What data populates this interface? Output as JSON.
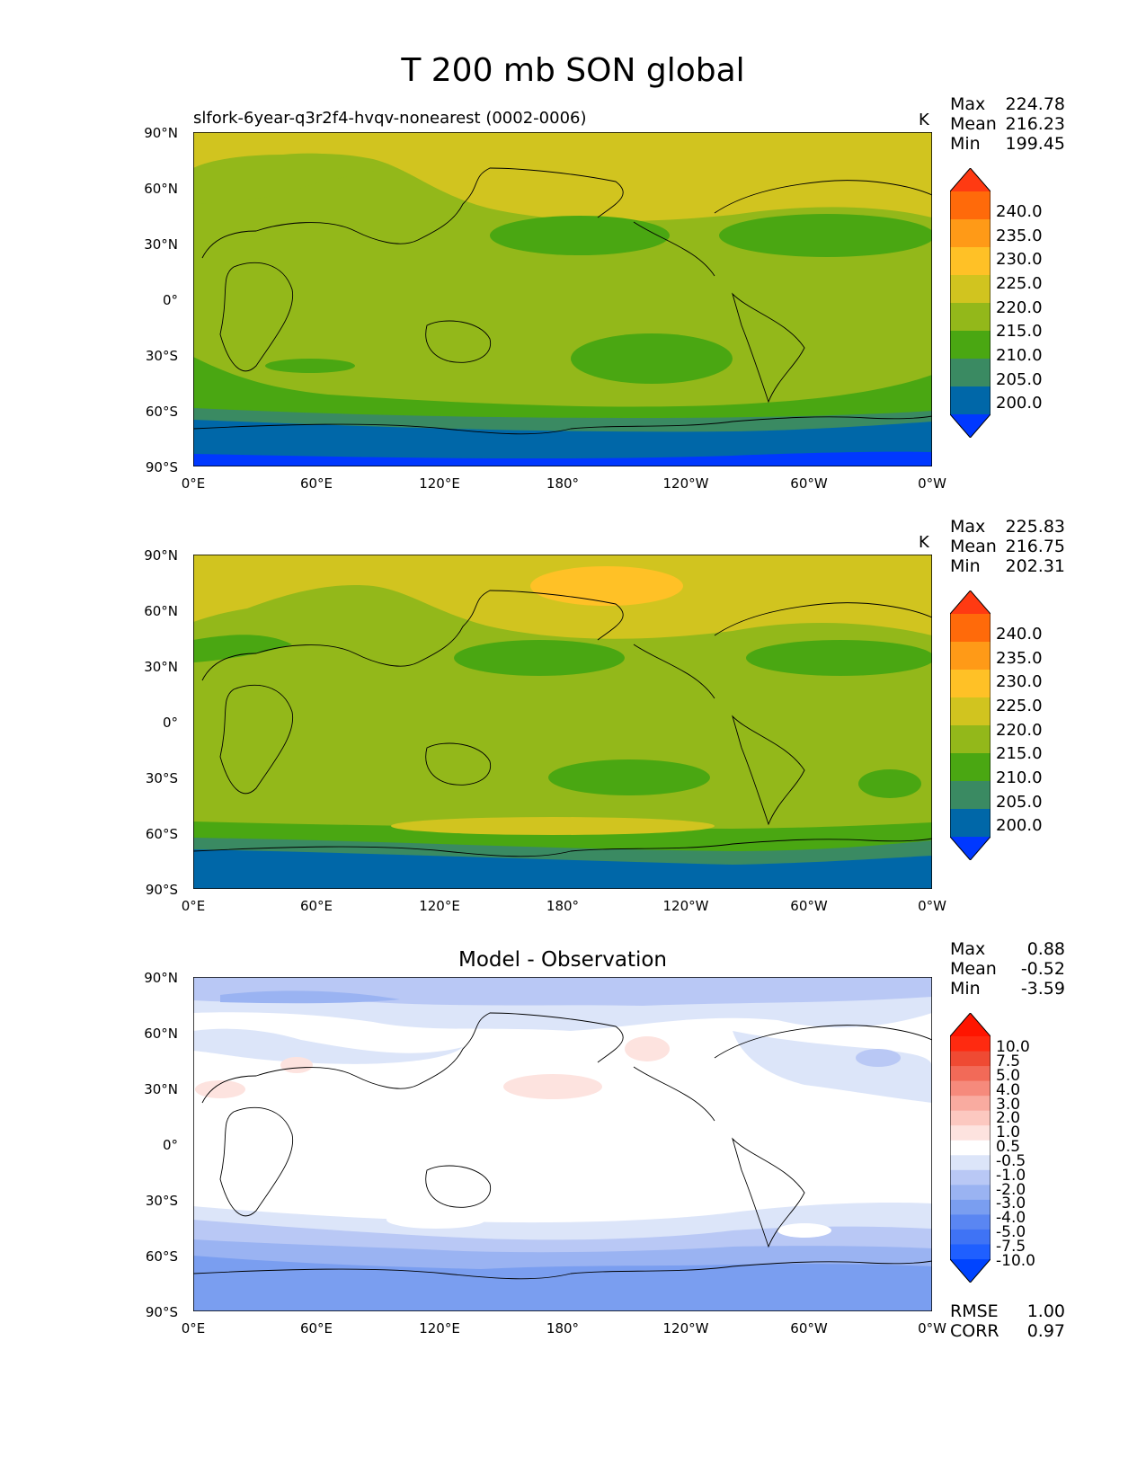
{
  "figure": {
    "title": "T 200 mb SON global"
  },
  "panels": [
    {
      "subtitle": "slfork-6year-q3r2f4-hvqv-nonearest (0002-0006)",
      "units": "K",
      "stats": {
        "max_label": "Max",
        "max": "224.78",
        "mean_label": "Mean",
        "mean": "216.23",
        "min_label": "Min",
        "min": "199.45"
      },
      "colorbar": [
        "240.0",
        "235.0",
        "230.0",
        "225.0",
        "220.0",
        "215.0",
        "210.0",
        "205.0",
        "200.0"
      ]
    },
    {
      "subtitle": "",
      "units": "K",
      "stats": {
        "max_label": "Max",
        "max": "225.83",
        "mean_label": "Mean",
        "mean": "216.75",
        "min_label": "Min",
        "min": "202.31"
      },
      "colorbar": [
        "240.0",
        "235.0",
        "230.0",
        "225.0",
        "220.0",
        "215.0",
        "210.0",
        "205.0",
        "200.0"
      ]
    },
    {
      "subtitle": "Model - Observation",
      "units": "",
      "stats": {
        "max_label": "Max",
        "max": "0.88",
        "mean_label": "Mean",
        "mean": "-0.52",
        "min_label": "Min",
        "min": "-3.59"
      },
      "colorbar": [
        "10.0",
        "7.5",
        "5.0",
        "4.0",
        "3.0",
        "2.0",
        "1.0",
        "0.5",
        "-0.5",
        "-1.0",
        "-2.0",
        "-3.0",
        "-4.0",
        "-5.0",
        "-7.5",
        "-10.0"
      ],
      "rmse_label": "RMSE",
      "rmse": "1.00",
      "corr_label": "CORR",
      "corr": "0.97"
    }
  ],
  "axes": {
    "lat_ticks": [
      "90°N",
      "60°N",
      "30°N",
      "0°",
      "30°S",
      "60°S",
      "90°S"
    ],
    "lon_ticks": [
      "0°E",
      "60°E",
      "120°E",
      "180°",
      "120°W",
      "60°W",
      "0°W"
    ]
  },
  "colors": {
    "abs": [
      "#0038ff",
      "#0067a8",
      "#3a8a62",
      "#4aa712",
      "#93b81a",
      "#d1c41f",
      "#ffc126",
      "#ff9a17",
      "#ff6a0a",
      "#ff3a12"
    ],
    "diff": [
      "#0044ff",
      "#1f5fff",
      "#3f73f5",
      "#5a86f2",
      "#7a9ef0",
      "#9ab3f2",
      "#b9c8f5",
      "#dce5f9",
      "#ffffff",
      "#fde3df",
      "#fcc8c0",
      "#f9aba0",
      "#f68a7c",
      "#f26a58",
      "#ef4a33",
      "#ff2a10",
      "#ff1500"
    ]
  }
}
